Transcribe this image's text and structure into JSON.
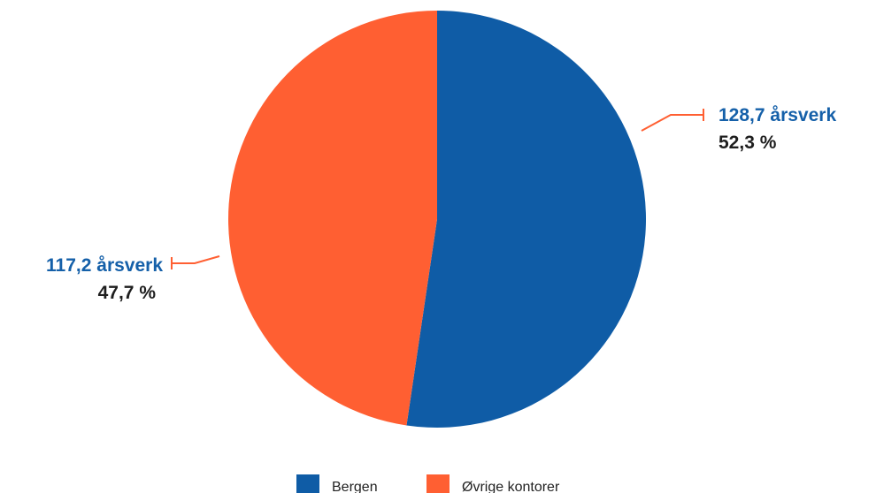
{
  "chart_data": {
    "type": "pie",
    "title": "",
    "categories": [
      "Bergen",
      "Øvrige kontorer"
    ],
    "values": [
      128.7,
      117.2
    ],
    "percentages": [
      52.3,
      47.7
    ],
    "colors": [
      "#0f5ca6",
      "#ff5f32"
    ],
    "data_labels": [
      {
        "value_text": "128,7 årsverk",
        "percent_text": "52,3 %"
      },
      {
        "value_text": "117,2 årsverk",
        "percent_text": "47,7 %"
      }
    ],
    "legend": {
      "position": "bottom-center",
      "entries": [
        "Bergen",
        "Øvrige kontorer"
      ]
    },
    "leader_line_color": "#ff5f32",
    "value_label_color": "#1560a9"
  }
}
